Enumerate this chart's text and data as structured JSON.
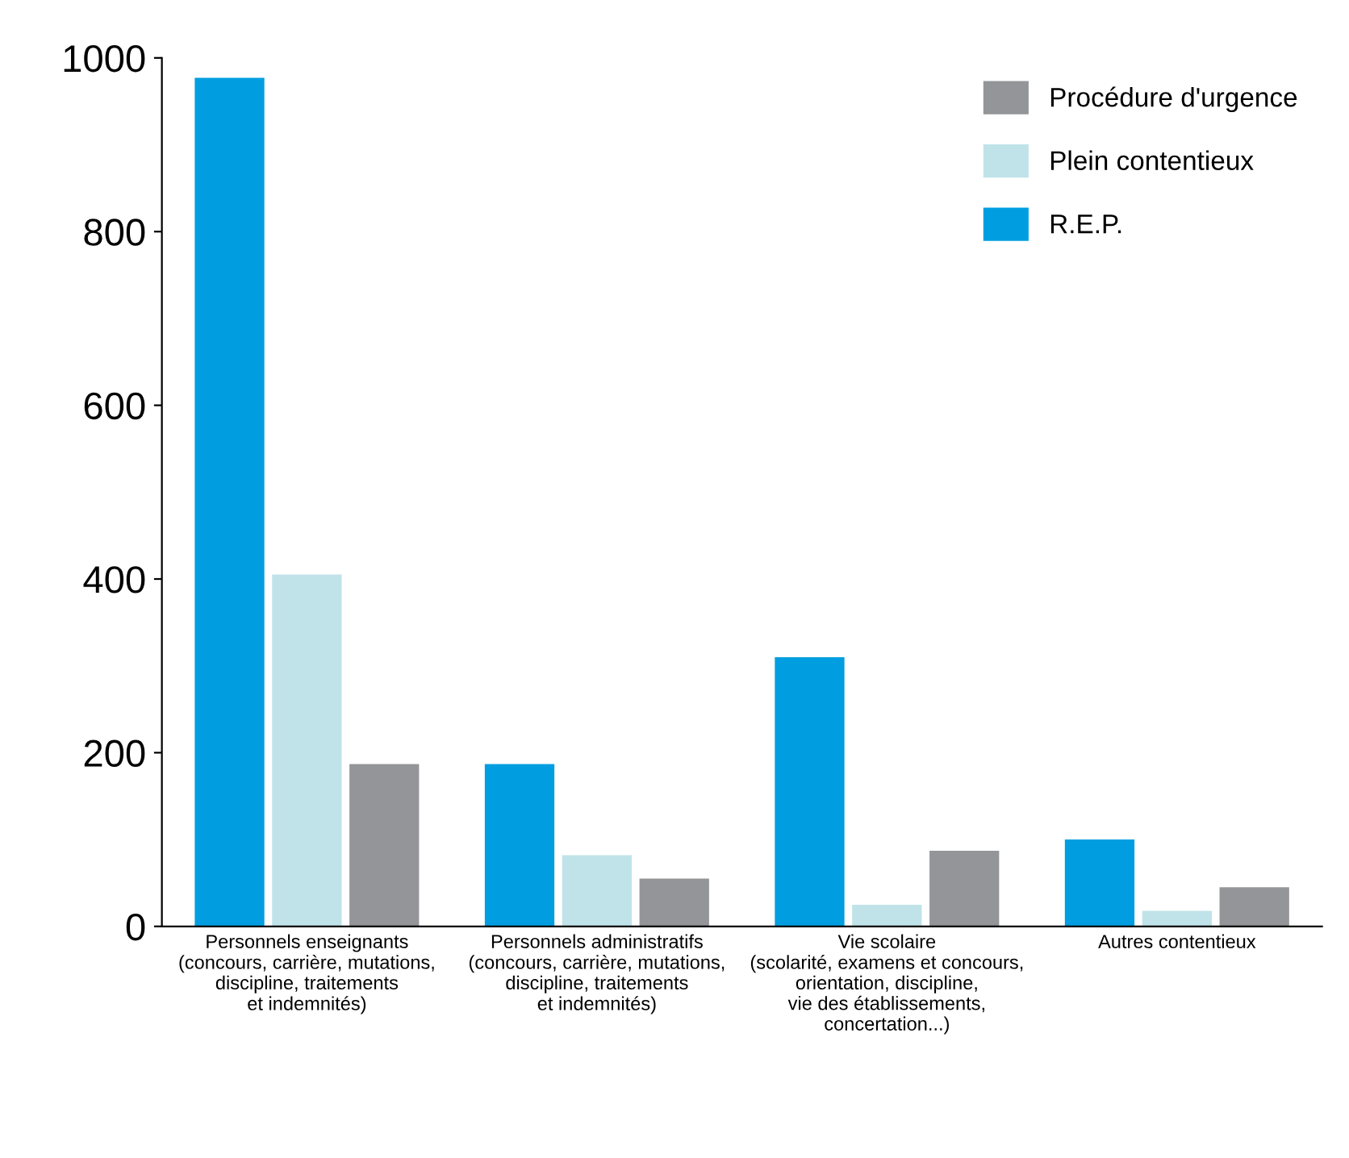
{
  "chart_data": {
    "type": "bar",
    "categories": [
      "Personnels enseignants\n(concours, carrière, mutations,\ndiscipline, traitements\net indemnités)",
      "Personnels administratifs\n(concours, carrière, mutations,\ndiscipline, traitements\net indemnités)",
      "Vie scolaire\n(scolarité, examens et concours,\norientation, discipline,\nvie des établissements,\nconcertation...)",
      "Autres contentieux"
    ],
    "series": [
      {
        "name": "R.E.P.",
        "color": "#009ee0",
        "values": [
          977,
          187,
          310,
          100
        ]
      },
      {
        "name": "Plein contentieux",
        "color": "#bfe3e8",
        "values": [
          405,
          82,
          25,
          18
        ]
      },
      {
        "name": "Procédure d'urgence",
        "color": "#939598",
        "values": [
          187,
          55,
          87,
          45
        ]
      }
    ],
    "ylim": [
      0,
      1000
    ],
    "yticks": [
      0,
      200,
      400,
      600,
      800,
      1000
    ],
    "grid": false,
    "legend": "top right"
  }
}
